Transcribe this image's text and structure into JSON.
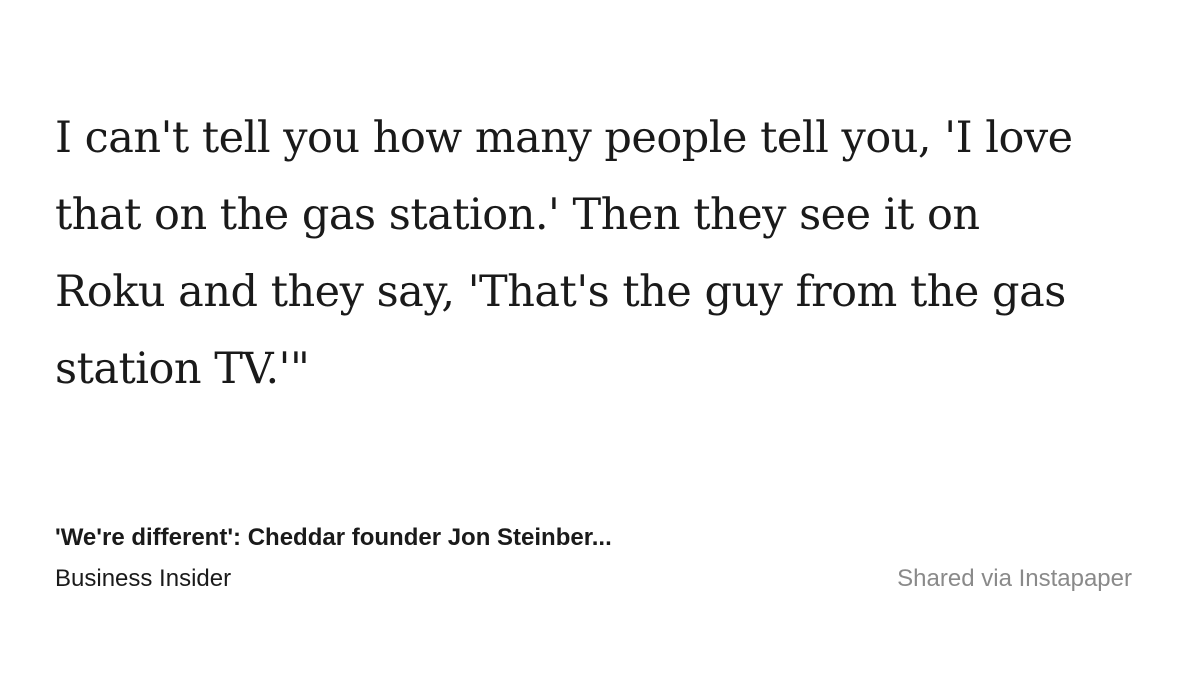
{
  "quote": {
    "text": "I can't tell you how many people tell you, 'I love\nthat on the gas station.' Then they see it on\nRoku and they say, 'That's the guy from the gas\nstation TV.'\""
  },
  "article": {
    "title": "'We're different': Cheddar founder Jon Steinber...",
    "publication": "Business Insider"
  },
  "share": {
    "label": "Shared via Instapaper"
  },
  "colors": {
    "text": "#1a1a1a",
    "muted": "#8a8a8a",
    "background": "#ffffff"
  }
}
